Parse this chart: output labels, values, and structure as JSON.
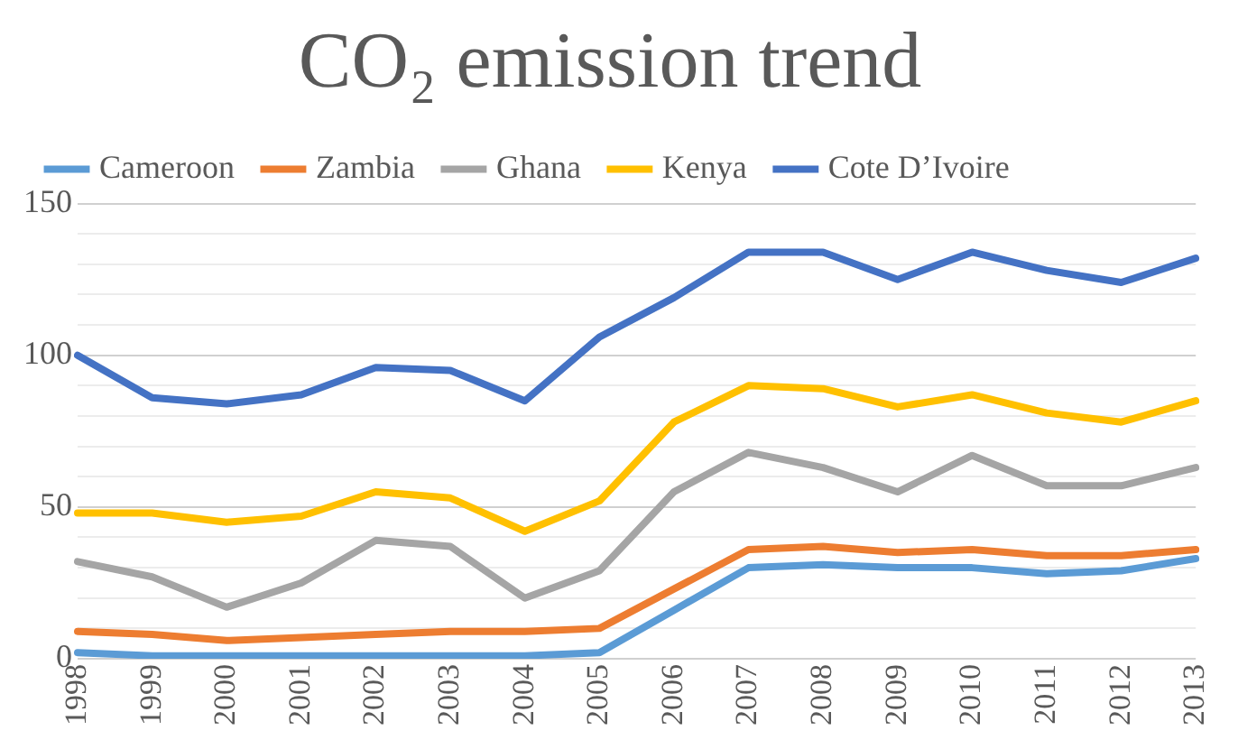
{
  "chart_data": {
    "type": "line",
    "title": "CO₂ emission trend",
    "categories": [
      "1998",
      "1999",
      "2000",
      "2001",
      "2002",
      "2003",
      "2004",
      "2005",
      "2006",
      "2007",
      "2008",
      "2009",
      "2010",
      "2011",
      "2012",
      "2013"
    ],
    "series": [
      {
        "name": "Cameroon",
        "color": "#5b9bd5",
        "values": [
          2,
          1,
          1,
          1,
          1,
          1,
          1,
          2,
          16,
          30,
          31,
          30,
          30,
          28,
          29,
          33
        ]
      },
      {
        "name": "Zambia",
        "color": "#ed7d31",
        "values": [
          9,
          8,
          6,
          7,
          8,
          9,
          9,
          10,
          23,
          36,
          37,
          35,
          36,
          34,
          34,
          36
        ]
      },
      {
        "name": "Ghana",
        "color": "#a5a5a5",
        "values": [
          32,
          27,
          17,
          25,
          39,
          37,
          20,
          29,
          55,
          68,
          63,
          55,
          67,
          57,
          57,
          63
        ]
      },
      {
        "name": "Kenya",
        "color": "#ffc000",
        "values": [
          48,
          48,
          45,
          47,
          55,
          53,
          42,
          52,
          78,
          90,
          89,
          83,
          87,
          81,
          78,
          85
        ]
      },
      {
        "name": "Cote D’Ivoire",
        "color": "#4472c4",
        "values": [
          100,
          86,
          84,
          87,
          96,
          95,
          85,
          106,
          119,
          134,
          134,
          125,
          134,
          128,
          124,
          132
        ]
      }
    ],
    "ylim": [
      0,
      150
    ],
    "yticks": [
      0,
      {
        "value": 10,
        "label": null
      },
      {
        "value": 20,
        "label": null
      },
      {
        "value": 30,
        "label": null
      },
      {
        "value": 40,
        "label": null
      },
      50,
      {
        "value": 60,
        "label": null
      },
      {
        "value": 70,
        "label": null
      },
      {
        "value": 80,
        "label": null
      },
      {
        "value": 90,
        "label": null
      },
      100,
      {
        "value": 110,
        "label": null
      },
      {
        "value": 120,
        "label": null
      },
      {
        "value": 130,
        "label": null
      },
      {
        "value": 140,
        "label": null
      },
      150
    ],
    "grid": "y",
    "legend": "top",
    "marker": "none",
    "line_style": "solid"
  }
}
